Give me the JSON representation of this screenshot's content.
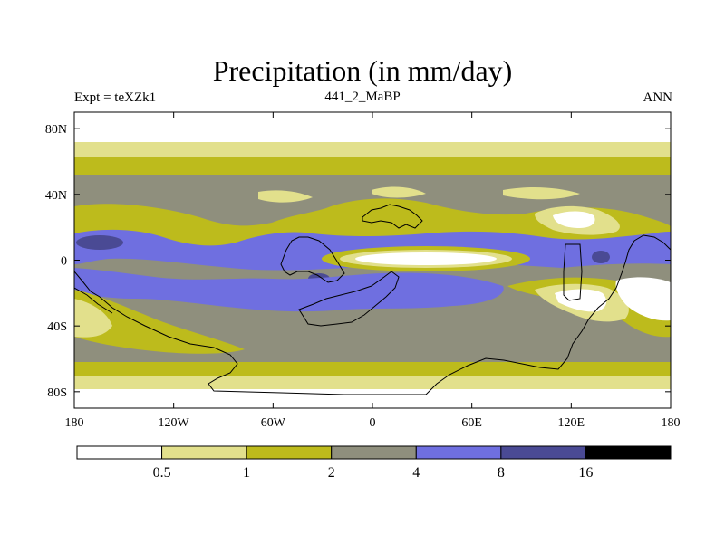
{
  "header": {
    "title": "Precipitation (in mm/day)",
    "left_label": "Expt = teXZk1",
    "center_label": "441_2_MaBP",
    "right_label": "ANN"
  },
  "chart_data": {
    "type": "heatmap",
    "title": "Precipitation (in mm/day)",
    "xlabel": "",
    "ylabel": "",
    "x_ticks": [
      "180",
      "120W",
      "60W",
      "0",
      "60E",
      "120E",
      "180"
    ],
    "y_ticks": [
      "80N",
      "40N",
      "0",
      "40S",
      "80S"
    ],
    "x_range": [
      -180,
      180
    ],
    "y_range": [
      -90,
      90
    ],
    "colorbar": {
      "levels": [
        "0.5",
        "1",
        "2",
        "4",
        "8",
        "16"
      ],
      "colors": [
        "#ffffff",
        "#e2e08c",
        "#bdbb1c",
        "#8f8f7d",
        "#6f6fe0",
        "#4a4a94",
        "#000000"
      ]
    },
    "zonal_bands": [
      {
        "lat_min": 72,
        "lat_max": 90,
        "category": "<0.5"
      },
      {
        "lat_min": 65,
        "lat_max": 72,
        "category": "0.5-1"
      },
      {
        "lat_min": 55,
        "lat_max": 65,
        "category": "1-2"
      },
      {
        "lat_min": 22,
        "lat_max": 55,
        "category": "2-4"
      },
      {
        "lat_min": -30,
        "lat_max": 22,
        "category": "mixed 2-8"
      },
      {
        "lat_min": -65,
        "lat_max": -30,
        "category": "2-4"
      },
      {
        "lat_min": -72,
        "lat_max": -65,
        "category": "1-2"
      },
      {
        "lat_min": -82,
        "lat_max": -72,
        "category": "0.5-1"
      },
      {
        "lat_min": -90,
        "lat_max": -82,
        "category": "<0.5"
      }
    ]
  }
}
